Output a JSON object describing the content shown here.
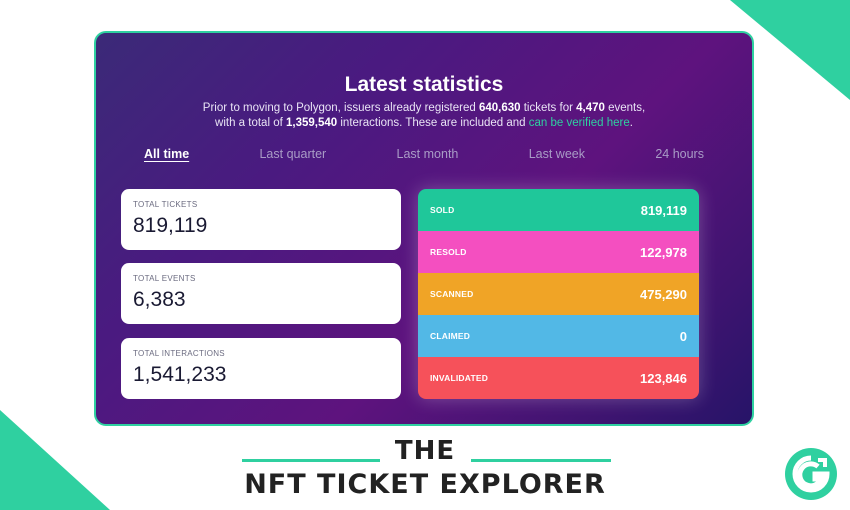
{
  "header": {
    "title": "Latest statistics",
    "subtitle_line1_prefix": "Prior to moving to Polygon, issuers already registered ",
    "subtitle_tickets": "640,630",
    "subtitle_line1_mid": " tickets for ",
    "subtitle_events": "4,470",
    "subtitle_line1_suffix": " events,",
    "subtitle_line2_prefix": "with a total of ",
    "subtitle_interactions": "1,359,540",
    "subtitle_line2_mid": " interactions. These are included and ",
    "subtitle_link": "can be verified here",
    "subtitle_line2_suffix": "."
  },
  "tabs": [
    {
      "label": "All time",
      "active": true
    },
    {
      "label": "Last quarter",
      "active": false
    },
    {
      "label": "Last month",
      "active": false
    },
    {
      "label": "Last week",
      "active": false
    },
    {
      "label": "24 hours",
      "active": false
    }
  ],
  "cards": [
    {
      "label": "TOTAL TICKETS",
      "value": "819,119"
    },
    {
      "label": "TOTAL EVENTS",
      "value": "6,383"
    },
    {
      "label": "TOTAL INTERACTIONS",
      "value": "1,541,233"
    }
  ],
  "breakdown": [
    {
      "label": "SOLD",
      "value": "819,119",
      "color": "#1fc79a"
    },
    {
      "label": "RESOLD",
      "value": "122,978",
      "color": "#f44fc0"
    },
    {
      "label": "SCANNED",
      "value": "475,290",
      "color": "#f0a426"
    },
    {
      "label": "CLAIMED",
      "value": "0",
      "color": "#52b8e6"
    },
    {
      "label": "INVALIDATED",
      "value": "123,846",
      "color": "#f6515a"
    }
  ],
  "footer": {
    "line1": "THE",
    "line2": "NFT TICKET EXPLORER"
  },
  "colors": {
    "accent": "#2fd0a0"
  },
  "logo": {
    "icon": "g-logo-icon"
  }
}
